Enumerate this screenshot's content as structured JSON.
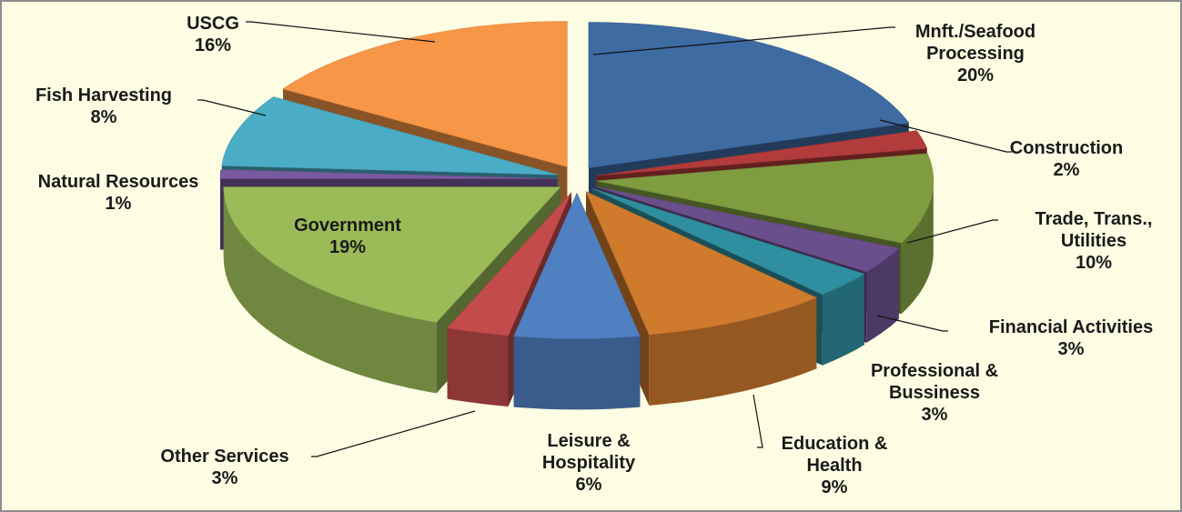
{
  "chart_data": {
    "type": "pie",
    "categories": [
      "Mnft./Seafood Processing",
      "Construction",
      "Trade, Trans., Utilities",
      "Financial Activities",
      "Professional & Bussiness",
      "Education & Health",
      "Leisure & Hospitality",
      "Other Services",
      "Government",
      "Natural Resources",
      "Fish Harvesting",
      "USCG"
    ],
    "values": [
      20,
      2,
      10,
      3,
      3,
      9,
      6,
      3,
      19,
      1,
      8,
      16
    ],
    "value_labels": [
      "20%",
      "2%",
      "10%",
      "3%",
      "3%",
      "9%",
      "6%",
      "3%",
      "19%",
      "1%",
      "8%",
      "16%"
    ],
    "colors": [
      "#3f6ba3",
      "#b23b3b",
      "#7f9c40",
      "#6b4f8c",
      "#2f8fa0",
      "#d07a2e",
      "#4f80c2",
      "#c44b4b",
      "#9bbb59",
      "#7a5a9e",
      "#4bacc6",
      "#f79646"
    ]
  }
}
